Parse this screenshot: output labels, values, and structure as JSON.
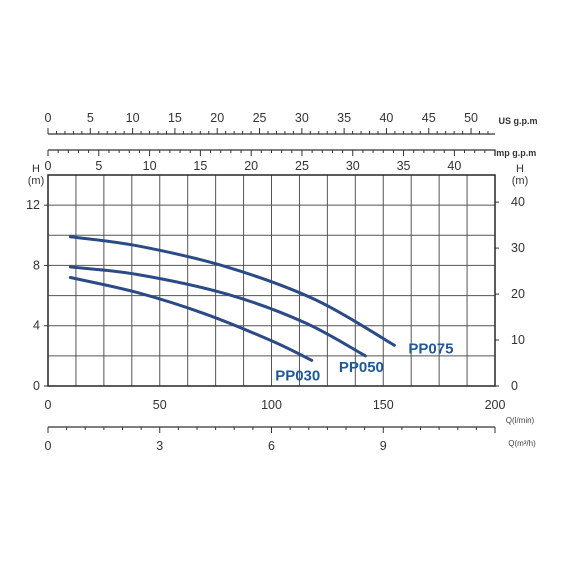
{
  "chart_data": {
    "type": "line",
    "series": [
      {
        "name": "PP075",
        "x": [
          10,
          40,
          80,
          120,
          155
        ],
        "y": [
          9.9,
          9.3,
          7.9,
          5.7,
          2.7
        ]
      },
      {
        "name": "PP050",
        "x": [
          10,
          40,
          80,
          115,
          142
        ],
        "y": [
          7.9,
          7.4,
          6.1,
          4.2,
          2.0
        ]
      },
      {
        "name": "PP030",
        "x": [
          10,
          40,
          70,
          100,
          118
        ],
        "y": [
          7.2,
          6.2,
          4.8,
          3.0,
          1.7
        ]
      }
    ],
    "axes": {
      "x_lpm": {
        "label": "Q(l/min)",
        "ticks": [
          "0",
          "50",
          "100",
          "150",
          "200"
        ],
        "range": [
          0,
          200
        ]
      },
      "y_m": {
        "label": "H\n(m)",
        "ticks": [
          "0",
          "4",
          "8",
          "12"
        ],
        "range": [
          0,
          14
        ]
      },
      "y_ft": {
        "label": "H\n(m)",
        "ticks": [
          "0",
          "10",
          "20",
          "30",
          "40"
        ],
        "range": [
          0,
          45.9
        ]
      },
      "x_m3h": {
        "label": "Q(m³/h)",
        "ticks": [
          "0",
          "3",
          "6",
          "9"
        ],
        "max": 12
      },
      "x_usgpm": {
        "label": "US g.p.m",
        "ticks": [
          "0",
          "5",
          "10",
          "15",
          "20",
          "25",
          "30",
          "35",
          "40",
          "45",
          "50"
        ],
        "max": 52.83
      },
      "x_impgpm": {
        "label": "Imp g.p.m",
        "ticks": [
          "0",
          "5",
          "10",
          "15",
          "20",
          "25",
          "30",
          "35",
          "40"
        ],
        "max": 44
      }
    },
    "grid": true
  },
  "colors": {
    "series_line": "#2b4a86",
    "series_label": "#1f5a96",
    "grid": "#555555",
    "axis": "#333333"
  }
}
